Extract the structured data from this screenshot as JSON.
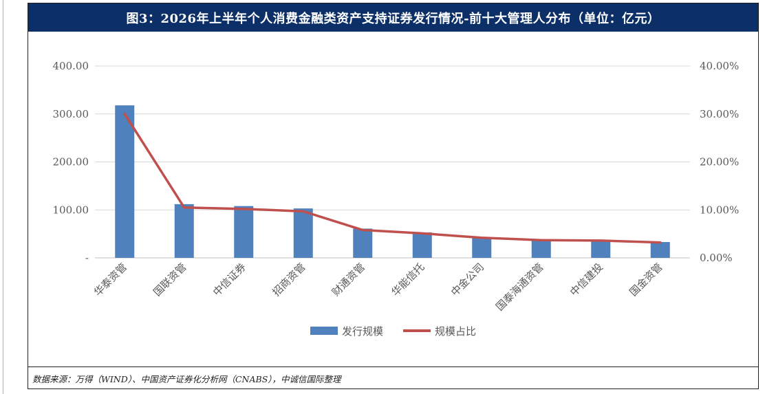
{
  "title": "图3：2026年上半年个人消费金融类资产支持证券发行情况-前十大管理人分布（单位：亿元）",
  "source": "数据来源：万得（WIND）、中国资产证券化分析网（CNABS），中诚信国际整理",
  "colors": {
    "bar": "#4f81bd",
    "line": "#c0504d",
    "title_bg": "#0b2f66",
    "grid": "#d9d9d9"
  },
  "chart_data": {
    "type": "bar",
    "categories": [
      "华泰资管",
      "国联资管",
      "中信证券",
      "招商资管",
      "财通资管",
      "华能信托",
      "中金公司",
      "国泰海通资管",
      "中信建投",
      "国金资管"
    ],
    "series": [
      {
        "name": "发行规模",
        "type": "bar",
        "axis": "left",
        "values": [
          318,
          112,
          108,
          103,
          61,
          53,
          43,
          39,
          36,
          33
        ]
      },
      {
        "name": "规模占比",
        "type": "line",
        "axis": "right",
        "values": [
          0.3,
          0.105,
          0.102,
          0.097,
          0.058,
          0.051,
          0.042,
          0.037,
          0.036,
          0.032
        ]
      }
    ],
    "y_left": {
      "ylim": [
        0,
        400
      ],
      "ticks": [
        0,
        100,
        200,
        300,
        400
      ],
      "tick_labels": [
        "-",
        "100.00",
        "200.00",
        "300.00",
        "400.00"
      ]
    },
    "y_right": {
      "ylim": [
        0,
        0.4
      ],
      "ticks": [
        0,
        0.1,
        0.2,
        0.3,
        0.4
      ],
      "tick_labels": [
        "0.00%",
        "10.00%",
        "20.00%",
        "30.00%",
        "40.00%"
      ]
    },
    "grid": true,
    "legend": {
      "position": "bottom",
      "labels": [
        "发行规模",
        "规模占比"
      ]
    }
  }
}
